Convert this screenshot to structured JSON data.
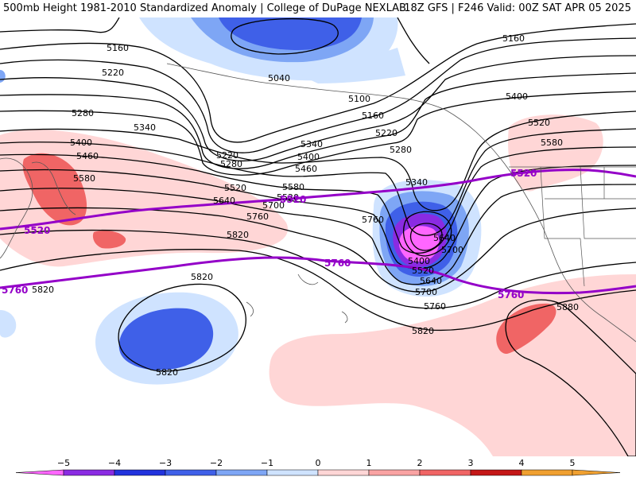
{
  "header": {
    "left_title": "500mb Height 1981-2010 Standardized Anomaly | College of DuPage NEXLAB",
    "right_title": "18Z GFS | F246 Valid: 00Z SAT APR 05 2025"
  },
  "contour_labels": [
    "5160",
    "5220",
    "5280",
    "5340",
    "5400",
    "5460",
    "5520",
    "5580",
    "5640",
    "5700",
    "5760",
    "5820",
    "5040",
    "5100",
    "5160",
    "5220",
    "5280",
    "5340",
    "5400",
    "5460",
    "5520",
    "5580",
    "5640",
    "5700",
    "5760",
    "5820",
    "5160",
    "5400",
    "5520",
    "5580",
    "5880",
    "5820",
    "5820",
    "5820",
    "5400",
    "5520",
    "5640",
    "5700",
    "5760",
    "5220",
    "5280",
    "5340"
  ],
  "climo_labels": [
    "5520",
    "5520",
    "5520",
    "5760",
    "5760",
    "5760"
  ],
  "colorbar": {
    "ticks": [
      "−5",
      "−4",
      "−3",
      "−2",
      "−1",
      "0",
      "1",
      "2",
      "3",
      "4",
      "5"
    ],
    "colors": [
      "#ff66ff",
      "#8a2be2",
      "#2233dd",
      "#3f60e8",
      "#7ea6f5",
      "#cfe3ff",
      "#ffd6d6",
      "#f9a3a3",
      "#f06565",
      "#c41818",
      "#f0a030"
    ]
  },
  "colors": {
    "contour": "#000000",
    "climo": "#9400c8",
    "neg1": "#cfe3ff",
    "neg2": "#7ea6f5",
    "neg3": "#3f60e8",
    "neg4": "#8a2be2",
    "neg5": "#ff66ff",
    "pos1": "#ffd6d6",
    "pos2": "#f9a3a3",
    "pos3": "#f06565"
  }
}
